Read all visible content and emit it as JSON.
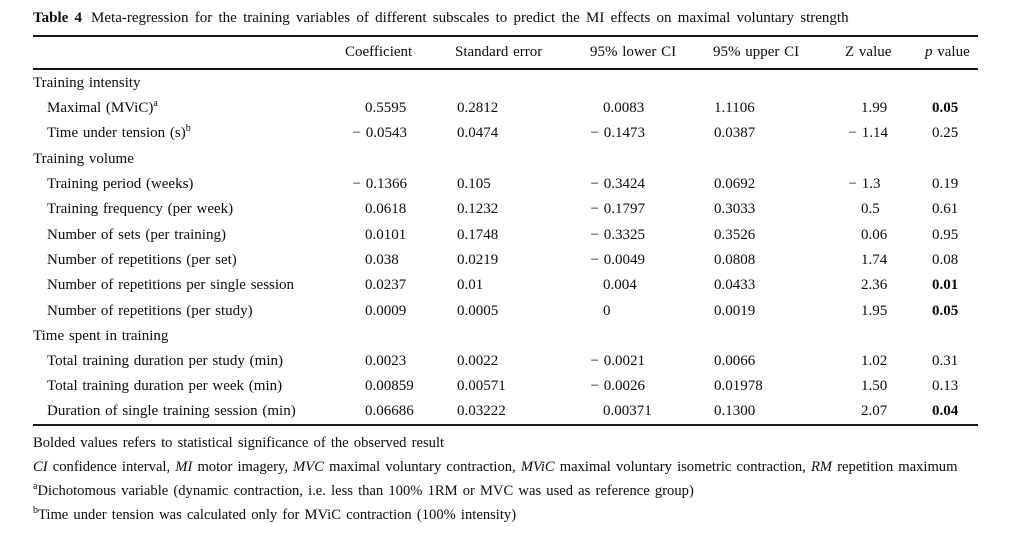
{
  "title": {
    "label": "Table 4",
    "text": "Meta-regression for the training variables of different subscales to predict the MI effects on maximal voluntary strength"
  },
  "table": {
    "columns": [
      {
        "key": "label",
        "label": []
      },
      {
        "key": "coef",
        "label": [
          {
            "t": "Coefficient"
          }
        ]
      },
      {
        "key": "se",
        "label": [
          {
            "t": "Standard error"
          }
        ]
      },
      {
        "key": "lci",
        "label": [
          {
            "t": "95% lower CI"
          }
        ]
      },
      {
        "key": "uci",
        "label": [
          {
            "t": "95% upper CI"
          }
        ]
      },
      {
        "key": "z",
        "label": [
          {
            "t": "Z value"
          }
        ]
      },
      {
        "key": "p",
        "label": [
          {
            "t": "p",
            "i": true
          },
          {
            "t": " value"
          }
        ]
      }
    ],
    "rows": [
      {
        "section": true,
        "label": "Training intensity"
      },
      {
        "label": "Maximal (MViC)",
        "sup": "a",
        "values": [
          "0.5595",
          "0.2812",
          "0.0083",
          "1.1106",
          "1.99",
          "0.05"
        ],
        "p_bold": true
      },
      {
        "label": "Time under tension (s)",
        "sup": "b",
        "values": [
          "− 0.0543",
          "0.0474",
          "− 0.1473",
          "0.0387",
          "− 1.14",
          "0.25"
        ]
      },
      {
        "section": true,
        "label": "Training volume"
      },
      {
        "label": "Training period (weeks)",
        "values": [
          "− 0.1366",
          "0.105",
          "− 0.3424",
          "0.0692",
          "− 1.3",
          "0.19"
        ]
      },
      {
        "label": "Training frequency (per week)",
        "values": [
          "0.0618",
          "0.1232",
          "− 0.1797",
          "0.3033",
          "0.5",
          "0.61"
        ]
      },
      {
        "label": "Number of sets (per training)",
        "values": [
          "0.0101",
          "0.1748",
          "− 0.3325",
          "0.3526",
          "0.06",
          "0.95"
        ]
      },
      {
        "label": "Number of repetitions (per set)",
        "values": [
          "0.038",
          "0.0219",
          "− 0.0049",
          "0.0808",
          "1.74",
          "0.08"
        ]
      },
      {
        "label": "Number of repetitions per single session",
        "values": [
          "0.0237",
          "0.01",
          "0.004",
          "0.0433",
          "2.36",
          "0.01"
        ],
        "p_bold": true
      },
      {
        "label": "Number of repetitions (per study)",
        "values": [
          "0.0009",
          "0.0005",
          "0",
          "0.0019",
          "1.95",
          "0.05"
        ],
        "p_bold": true
      },
      {
        "section": true,
        "label": "Time spent in training"
      },
      {
        "label": "Total training duration per study (min)",
        "values": [
          "0.0023",
          "0.0022",
          "− 0.0021",
          "0.0066",
          "1.02",
          "0.31"
        ]
      },
      {
        "label": "Total training duration per week (min)",
        "values": [
          "0.00859",
          "0.00571",
          "− 0.0026",
          "0.01978",
          "1.50",
          "0.13"
        ]
      },
      {
        "label": "Duration of single training session (min)",
        "values": [
          "0.06686",
          "0.03222",
          "0.00371",
          "0.1300",
          "2.07",
          "0.04"
        ],
        "p_bold": true
      }
    ]
  },
  "footnotes": {
    "bold_note": "Bolded values refers to statistical significance of the observed result",
    "abbrev": [
      {
        "t": "CI",
        "i": true
      },
      {
        "t": " confidence interval, "
      },
      {
        "t": "MI",
        "i": true
      },
      {
        "t": " motor imagery, "
      },
      {
        "t": "MVC",
        "i": true
      },
      {
        "t": " maximal voluntary contraction, "
      },
      {
        "t": "MViC",
        "i": true
      },
      {
        "t": " maximal voluntary isometric contraction, "
      },
      {
        "t": "RM",
        "i": true
      },
      {
        "t": " repetition maximum"
      }
    ],
    "note_a": [
      {
        "t": "a",
        "sup": true
      },
      {
        "t": "Dichotomous variable (dynamic contraction, i.e. less than 100% 1RM or MVC was used as reference group)"
      }
    ],
    "note_b": [
      {
        "t": "b",
        "sup": true
      },
      {
        "t": "Time under tension was calculated only for MViC contraction (100% intensity)"
      }
    ]
  }
}
